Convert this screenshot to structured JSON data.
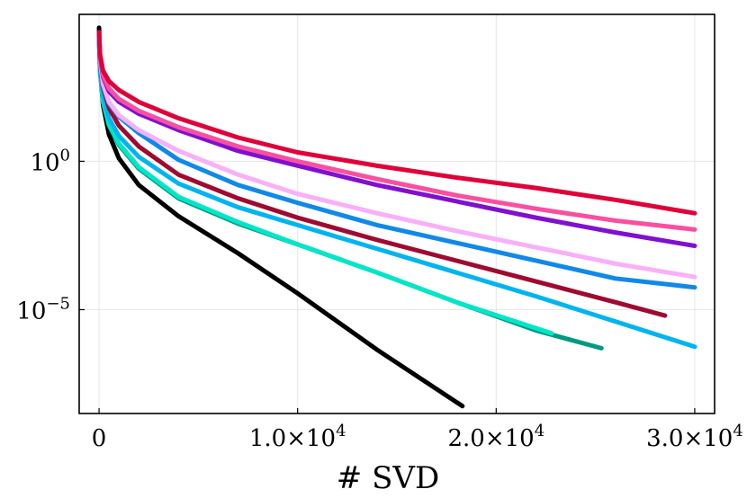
{
  "chart_data": {
    "type": "line",
    "title": "",
    "xlabel": "# SVD",
    "ylabel": "",
    "yscale": "log",
    "xlim": [
      -1000,
      31000
    ],
    "ylim_log10": [
      -8.5,
      4.95
    ],
    "grid": true,
    "legend": "none",
    "x_ticks": [
      {
        "value": 0,
        "label": "0"
      },
      {
        "value": 10000,
        "label": "1.0×10^4"
      },
      {
        "value": 20000,
        "label": "2.0×10^4"
      },
      {
        "value": 30000,
        "label": "3.0×10^4"
      }
    ],
    "y_ticks": [
      {
        "log10": 0,
        "label": "10^0"
      },
      {
        "log10": -5,
        "label": "10^−5"
      }
    ],
    "series": [
      {
        "name": "black",
        "color": "#000000",
        "x": [
          0,
          50,
          200,
          500,
          1000,
          2000,
          4000,
          7000,
          10000,
          14000,
          18300
        ],
        "log10y": [
          4.5,
          3.2,
          1.9,
          0.9,
          0.1,
          -0.8,
          -1.85,
          -3.1,
          -4.45,
          -6.35,
          -8.25
        ]
      },
      {
        "name": "teal",
        "color": "#009a7f",
        "x": [
          0,
          50,
          200,
          500,
          1000,
          2000,
          4000,
          7000,
          10000,
          14000,
          18000,
          22000,
          25300
        ],
        "log10y": [
          4.1,
          3.0,
          2.0,
          1.2,
          0.55,
          -0.25,
          -1.25,
          -2.1,
          -2.8,
          -3.75,
          -4.75,
          -5.7,
          -6.3
        ]
      },
      {
        "name": "turquoise",
        "color": "#00e6c8",
        "x": [
          0,
          50,
          200,
          500,
          1000,
          2000,
          4000,
          7000,
          10000,
          14000,
          18000,
          22800
        ],
        "log10y": [
          4.2,
          3.1,
          2.05,
          1.25,
          0.6,
          -0.2,
          -1.2,
          -2.05,
          -2.8,
          -3.75,
          -4.75,
          -5.8
        ]
      },
      {
        "name": "sky-blue",
        "color": "#00b4f0",
        "x": [
          0,
          50,
          200,
          500,
          1000,
          2000,
          4000,
          7000,
          10000,
          14000,
          18000,
          22000,
          26000,
          30000
        ],
        "log10y": [
          4.1,
          3.1,
          2.2,
          1.45,
          0.85,
          0.15,
          -0.75,
          -1.55,
          -2.15,
          -2.95,
          -3.75,
          -4.55,
          -5.4,
          -6.25
        ]
      },
      {
        "name": "dark-red",
        "color": "#a00a30",
        "x": [
          0,
          50,
          200,
          500,
          1000,
          2000,
          4000,
          7000,
          10000,
          14000,
          18000,
          22000,
          26000,
          28500
        ],
        "log10y": [
          4.15,
          3.3,
          2.5,
          1.8,
          1.2,
          0.5,
          -0.45,
          -1.25,
          -1.9,
          -2.65,
          -3.35,
          -4.05,
          -4.75,
          -5.2
        ]
      },
      {
        "name": "blue",
        "color": "#1089e8",
        "x": [
          0,
          50,
          200,
          500,
          1000,
          2000,
          4000,
          7000,
          10000,
          14000,
          18000,
          22000,
          26000,
          30000
        ],
        "log10y": [
          4.2,
          3.35,
          2.55,
          1.95,
          1.5,
          0.95,
          0.05,
          -0.8,
          -1.4,
          -2.15,
          -2.75,
          -3.35,
          -3.95,
          -4.25
        ]
      },
      {
        "name": "light-pink",
        "color": "#f8b0f8",
        "x": [
          0,
          50,
          200,
          500,
          1000,
          2000,
          4000,
          7000,
          10000,
          14000,
          18000,
          22000,
          26000,
          30000
        ],
        "log10y": [
          4.2,
          3.4,
          2.6,
          2.0,
          1.55,
          1.05,
          0.35,
          -0.45,
          -1.1,
          -1.75,
          -2.35,
          -2.9,
          -3.45,
          -3.9
        ]
      },
      {
        "name": "purple",
        "color": "#8010d0",
        "x": [
          0,
          50,
          200,
          500,
          1000,
          2000,
          4000,
          7000,
          10000,
          14000,
          18000,
          22000,
          26000,
          30000
        ],
        "log10y": [
          4.25,
          3.5,
          2.85,
          2.35,
          2.0,
          1.6,
          1.05,
          0.35,
          -0.15,
          -0.8,
          -1.35,
          -1.9,
          -2.4,
          -2.85
        ]
      },
      {
        "name": "pink",
        "color": "#fa4fa0",
        "x": [
          0,
          50,
          200,
          500,
          1000,
          2000,
          4000,
          7000,
          10000,
          14000,
          18000,
          22000,
          26000,
          30000
        ],
        "log10y": [
          4.3,
          3.55,
          2.9,
          2.45,
          2.1,
          1.7,
          1.15,
          0.5,
          0.0,
          -0.6,
          -1.15,
          -1.6,
          -2.0,
          -2.3
        ]
      },
      {
        "name": "crimson",
        "color": "#e0003a",
        "x": [
          0,
          50,
          200,
          500,
          1000,
          2000,
          4000,
          7000,
          10000,
          14000,
          18000,
          22000,
          26000,
          30000
        ],
        "log10y": [
          4.35,
          3.6,
          3.05,
          2.7,
          2.4,
          2.0,
          1.45,
          0.8,
          0.3,
          -0.15,
          -0.55,
          -0.9,
          -1.3,
          -1.75
        ]
      }
    ]
  }
}
